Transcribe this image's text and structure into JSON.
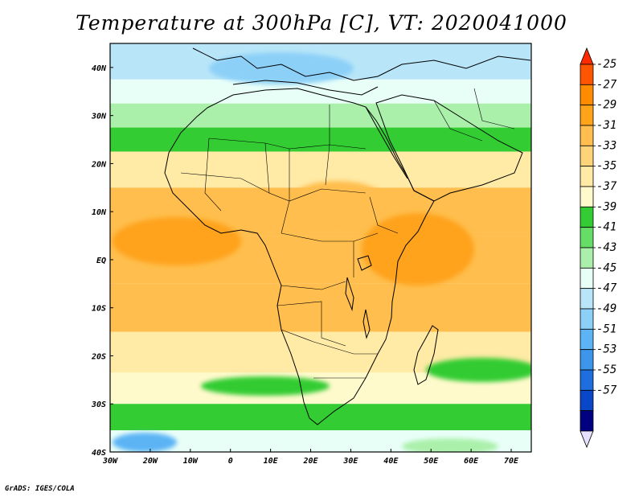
{
  "title": "Temperature at 300hPa [C], VT: 2020041000",
  "credit": "GrADS: IGES/COLA",
  "map": {
    "lon_range": [
      -30,
      75
    ],
    "lat_range": [
      -40,
      45
    ],
    "lon_ticks": [
      {
        "lon": -30,
        "label": "30W"
      },
      {
        "lon": -20,
        "label": "20W"
      },
      {
        "lon": -10,
        "label": "10W"
      },
      {
        "lon": 0,
        "label": "0"
      },
      {
        "lon": 10,
        "label": "10E"
      },
      {
        "lon": 20,
        "label": "20E"
      },
      {
        "lon": 30,
        "label": "30E"
      },
      {
        "lon": 40,
        "label": "40E"
      },
      {
        "lon": 50,
        "label": "50E"
      },
      {
        "lon": 60,
        "label": "60E"
      },
      {
        "lon": 70,
        "label": "70E"
      }
    ],
    "lat_ticks": [
      {
        "lat": 40,
        "label": "40N"
      },
      {
        "lat": 30,
        "label": "30N"
      },
      {
        "lat": 20,
        "label": "20N"
      },
      {
        "lat": 10,
        "label": "10N"
      },
      {
        "lat": 0,
        "label": "EQ"
      },
      {
        "lat": -10,
        "label": "10S"
      },
      {
        "lat": -20,
        "label": "20S"
      },
      {
        "lat": -30,
        "label": "30S"
      },
      {
        "lat": -40,
        "label": "40S"
      }
    ]
  },
  "colorbar": {
    "labels": [
      "-25",
      "-27",
      "-29",
      "-31",
      "-33",
      "-35",
      "-37",
      "-39",
      "-41",
      "-43",
      "-45",
      "-47",
      "-49",
      "-51",
      "-53",
      "-55",
      "-57"
    ],
    "colors": [
      "#ff5500",
      "#ff8c00",
      "#ffa31a",
      "#ffbe4d",
      "#ffd479",
      "#ffeaa6",
      "#fffacc",
      "#33cc33",
      "#66dd66",
      "#aaf0aa",
      "#e8fff8",
      "#b8e6f8",
      "#8cd0f8",
      "#5cb4f5",
      "#3c96eb",
      "#1e6ee0",
      "#0a46c8",
      "#000080"
    ]
  },
  "chart_data": {
    "type": "heatmap",
    "title": "Temperature at 300hPa [C], VT: 2020041000",
    "field": "Temperature at 300hPa [C]",
    "valid_time": "2020041000",
    "x_ticks": [
      "30W",
      "20W",
      "10W",
      "0",
      "10E",
      "20E",
      "30E",
      "40E",
      "50E",
      "60E",
      "70E"
    ],
    "y_ticks": [
      "40N",
      "30N",
      "20N",
      "10N",
      "EQ",
      "10S",
      "20S",
      "30S",
      "40S"
    ],
    "xlim": [
      -30,
      75
    ],
    "ylim": [
      -40,
      45
    ],
    "color_levels": [
      -25,
      -27,
      -29,
      -31,
      -33,
      -35,
      -37,
      -39,
      -41,
      -43,
      -45,
      -47,
      -49,
      -51,
      -53,
      -55,
      -57
    ],
    "zonal_bands_approx": [
      {
        "lat": 40,
        "value": -47
      },
      {
        "lat": 35,
        "value": -45
      },
      {
        "lat": 30,
        "value": -42
      },
      {
        "lat": 25,
        "value": -38
      },
      {
        "lat": 20,
        "value": -34
      },
      {
        "lat": 10,
        "value": -31
      },
      {
        "lat": 0,
        "value": -30
      },
      {
        "lat": -10,
        "value": -31
      },
      {
        "lat": -20,
        "value": -34
      },
      {
        "lat": -27,
        "value": -37
      },
      {
        "lat": -33,
        "value": -39
      },
      {
        "lat": -38,
        "value": -44
      }
    ]
  }
}
